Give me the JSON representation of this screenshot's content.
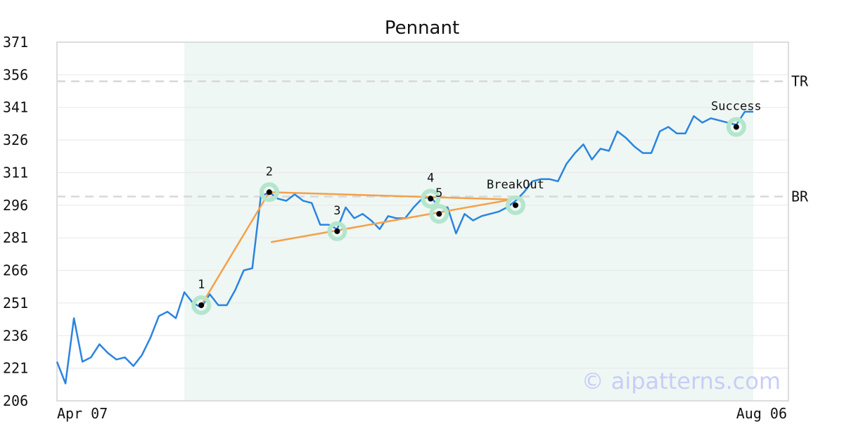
{
  "chart_data": {
    "type": "line",
    "title": "Pennant",
    "watermark": "© aipatterns.com",
    "ylim": [
      206,
      371
    ],
    "yticks": [
      206,
      221,
      236,
      251,
      266,
      281,
      296,
      311,
      326,
      341,
      356,
      371
    ],
    "x_tick_labels": [
      {
        "index": 0,
        "label": "Apr 07"
      },
      {
        "index": 82,
        "label": "Aug 06"
      }
    ],
    "grid": true,
    "highlight_range": [
      15,
      82
    ],
    "levels": [
      {
        "name": "TR",
        "value": 353
      },
      {
        "name": "BR",
        "value": 300
      }
    ],
    "series": [
      {
        "color": "#2b84e0",
        "values": [
          224,
          214,
          244,
          224,
          226,
          232,
          228,
          225,
          226,
          222,
          227,
          235,
          245,
          247,
          244,
          256,
          251,
          249,
          255,
          250,
          250,
          257,
          266,
          267,
          300,
          302,
          299,
          298,
          301,
          298,
          297,
          287,
          287,
          285,
          295,
          290,
          292,
          289,
          285,
          291,
          290,
          290,
          295,
          299,
          300,
          295,
          295,
          283,
          292,
          289,
          291,
          292,
          293,
          295,
          298,
          302,
          307,
          308,
          308,
          307,
          315,
          320,
          324,
          317,
          322,
          321,
          330,
          327,
          323,
          320,
          320,
          330,
          332,
          329,
          329,
          337,
          334,
          336,
          335,
          334,
          333,
          339,
          339
        ]
      }
    ],
    "pattern_lines": [
      {
        "color": "#f5a04a",
        "points": [
          [
            17,
            250
          ],
          [
            25,
            302
          ],
          [
            53.5,
            298.6
          ]
        ]
      },
      {
        "color": "#f5a04a",
        "points": [
          [
            25.2,
            279
          ],
          [
            53.5,
            298.6
          ]
        ]
      }
    ],
    "points": [
      {
        "label": "1",
        "x": 17,
        "y": 250
      },
      {
        "label": "2",
        "x": 25,
        "y": 302
      },
      {
        "label": "3",
        "x": 33,
        "y": 284
      },
      {
        "label": "4",
        "x": 44,
        "y": 299
      },
      {
        "label": "5",
        "x": 45,
        "y": 292
      },
      {
        "label": "BreakOut",
        "x": 54,
        "y": 296
      },
      {
        "label": "Success",
        "x": 80,
        "y": 332
      }
    ]
  }
}
